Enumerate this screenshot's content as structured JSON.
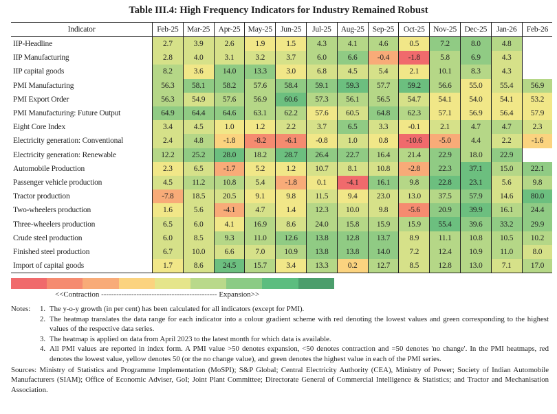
{
  "title": "Table III.4: High Frequency Indicators for Industry Remained Robust",
  "header": {
    "indicator": "Indicator",
    "months": [
      "Feb-25",
      "Mar-25",
      "Apr-25",
      "May-25",
      "Jun-25",
      "Jul-25",
      "Aug-25",
      "Sep-25",
      "Oct-25",
      "Nov-25",
      "Dec-25",
      "Jan-26",
      "Feb-26"
    ]
  },
  "palette": [
    "#f06a6c",
    "#f58b70",
    "#f8ab78",
    "#fbd37f",
    "#f1e788",
    "#d6e189",
    "#b5d787",
    "#90cb84",
    "#6cbf7f",
    "#57b27a"
  ],
  "rows": [
    {
      "name": "IIP-Headline",
      "values": [
        "2.7",
        "3.9",
        "2.6",
        "1.9",
        "1.5",
        "4.3",
        "4.1",
        "4.6",
        "0.5",
        "7.2",
        "8.0",
        "4.8",
        null
      ],
      "levels": [
        5,
        5,
        5,
        4,
        4,
        6,
        6,
        6,
        4,
        7,
        7,
        6,
        null
      ]
    },
    {
      "name": "IIP Manufacturing",
      "values": [
        "2.8",
        "4.0",
        "3.1",
        "3.2",
        "3.7",
        "6.0",
        "6.6",
        "-0.4",
        "-1.8",
        "5.8",
        "6.9",
        "4.3",
        null
      ],
      "levels": [
        5,
        5,
        5,
        5,
        5,
        6,
        7,
        2,
        0,
        6,
        7,
        5,
        null
      ]
    },
    {
      "name": "IIP capital goods",
      "values": [
        "8.2",
        "3.6",
        "14.0",
        "13.3",
        "3.0",
        "6.8",
        "4.5",
        "5.4",
        "2.1",
        "10.1",
        "8.3",
        "4.3",
        null
      ],
      "levels": [
        6,
        4,
        7,
        7,
        4,
        5,
        5,
        5,
        4,
        6,
        6,
        5,
        null
      ]
    },
    {
      "name": "PMI Manufacturing",
      "values": [
        "56.3",
        "58.1",
        "58.2",
        "57.6",
        "58.4",
        "59.1",
        "59.3",
        "57.7",
        "59.2",
        "56.6",
        "55.0",
        "55.4",
        "56.9"
      ],
      "levels": [
        6,
        7,
        7,
        6,
        7,
        7,
        8,
        6,
        8,
        6,
        4,
        5,
        6
      ]
    },
    {
      "name": "PMI Export Order",
      "values": [
        "56.3",
        "54.9",
        "57.6",
        "56.9",
        "60.6",
        "57.3",
        "56.1",
        "56.5",
        "54.7",
        "54.1",
        "54.0",
        "54.1",
        "53.2"
      ],
      "levels": [
        6,
        5,
        6,
        6,
        8,
        6,
        6,
        6,
        5,
        4,
        4,
        4,
        4
      ]
    },
    {
      "name": "PMI Manufacturing: Future Output",
      "values": [
        "64.9",
        "64.4",
        "64.6",
        "63.1",
        "62.2",
        "57.6",
        "60.5",
        "64.8",
        "62.3",
        "57.1",
        "56.9",
        "56.4",
        "57.9"
      ],
      "levels": [
        7,
        7,
        7,
        6,
        6,
        4,
        5,
        7,
        6,
        4,
        4,
        4,
        4
      ]
    },
    {
      "name": "Eight Core Index",
      "values": [
        "3.4",
        "4.5",
        "1.0",
        "1.2",
        "2.2",
        "3.7",
        "6.5",
        "3.3",
        "-0.1",
        "2.1",
        "4.7",
        "4.7",
        "2.3"
      ],
      "levels": [
        5,
        5,
        4,
        4,
        5,
        5,
        7,
        5,
        4,
        5,
        6,
        6,
        5
      ]
    },
    {
      "name": "Electricity generation: Conventional",
      "values": [
        "2.4",
        "4.8",
        "-1.8",
        "-8.2",
        "-6.1",
        "-0.8",
        "1.0",
        "0.8",
        "-10.6",
        "-5.0",
        "4.4",
        "2.2",
        "-1.6"
      ],
      "levels": [
        5,
        6,
        3,
        1,
        1,
        4,
        5,
        4,
        0,
        2,
        6,
        5,
        3
      ]
    },
    {
      "name": "Electricity generation: Renewable",
      "values": [
        "12.2",
        "25.2",
        "28.0",
        "18.2",
        "28.7",
        "26.4",
        "22.7",
        "16.4",
        "21.4",
        "22.9",
        "18.0",
        "22.9",
        null
      ],
      "levels": [
        6,
        7,
        8,
        6,
        8,
        7,
        7,
        6,
        6,
        7,
        6,
        7,
        null
      ]
    },
    {
      "name": "Automobile Production",
      "values": [
        "2.3",
        "6.5",
        "-1.7",
        "5.2",
        "1.2",
        "10.7",
        "8.1",
        "10.8",
        "-2.8",
        "22.3",
        "37.1",
        "15.0",
        "22.1"
      ],
      "levels": [
        4,
        5,
        2,
        4,
        4,
        5,
        5,
        5,
        2,
        7,
        8,
        6,
        7
      ]
    },
    {
      "name": "Passenger vehicle production",
      "values": [
        "4.5",
        "11.2",
        "10.8",
        "5.4",
        "-1.8",
        "0.1",
        "-4.1",
        "16.1",
        "9.8",
        "22.8",
        "23.1",
        "5.6",
        "9.8"
      ],
      "levels": [
        5,
        6,
        6,
        5,
        2,
        4,
        0,
        7,
        6,
        8,
        8,
        5,
        6
      ]
    },
    {
      "name": "Tractor production",
      "values": [
        "-7.8",
        "18.5",
        "20.5",
        "9.1",
        "9.8",
        "11.5",
        "9.4",
        "23.0",
        "13.0",
        "37.5",
        "57.9",
        "14.6",
        "80.0"
      ],
      "levels": [
        2,
        5,
        5,
        4,
        4,
        5,
        4,
        5,
        5,
        6,
        7,
        5,
        8
      ]
    },
    {
      "name": "Two-wheelers production",
      "values": [
        "1.6",
        "5.6",
        "-4.1",
        "4.7",
        "1.4",
        "12.3",
        "10.0",
        "9.8",
        "-5.6",
        "20.9",
        "39.9",
        "16.1",
        "24.4"
      ],
      "levels": [
        4,
        5,
        2,
        5,
        4,
        6,
        5,
        5,
        1,
        7,
        8,
        6,
        7
      ]
    },
    {
      "name": "Three-wheelers production",
      "values": [
        "6.5",
        "6.0",
        "4.1",
        "16.9",
        "8.6",
        "24.0",
        "15.8",
        "15.9",
        "15.9",
        "55.4",
        "39.6",
        "33.2",
        "29.9"
      ],
      "levels": [
        5,
        5,
        4,
        6,
        5,
        6,
        6,
        6,
        6,
        8,
        7,
        7,
        7
      ]
    },
    {
      "name": "Crude steel production",
      "values": [
        "6.0",
        "8.5",
        "9.3",
        "11.0",
        "12.6",
        "13.8",
        "12.8",
        "13.7",
        "8.9",
        "11.1",
        "10.8",
        "10.5",
        "10.2"
      ],
      "levels": [
        5,
        5,
        6,
        6,
        7,
        7,
        7,
        7,
        5,
        6,
        6,
        6,
        6
      ]
    },
    {
      "name": "Finished steel production",
      "values": [
        "6.7",
        "10.0",
        "6.6",
        "7.0",
        "10.9",
        "13.8",
        "13.8",
        "14.0",
        "7.2",
        "12.4",
        "10.9",
        "11.0",
        "8.0"
      ],
      "levels": [
        5,
        5,
        5,
        5,
        6,
        7,
        7,
        7,
        5,
        6,
        6,
        6,
        5
      ]
    },
    {
      "name": "Import of capital goods",
      "values": [
        "1.7",
        "8.6",
        "24.5",
        "15.7",
        "3.4",
        "13.3",
        "0.2",
        "12.7",
        "8.5",
        "12.8",
        "13.0",
        "7.1",
        "17.0"
      ],
      "levels": [
        4,
        5,
        8,
        6,
        4,
        6,
        3,
        6,
        5,
        6,
        6,
        5,
        6
      ]
    }
  ],
  "legend": {
    "colors": [
      "#f06a6c",
      "#f58b70",
      "#f8ab78",
      "#fbd37f",
      "#e5e58a",
      "#b9d98a",
      "#8bcb85",
      "#5cbd7f",
      "#4b9e6c"
    ],
    "caption": "<<Contraction ---------------------------------------------- Expansion>>"
  },
  "notes": {
    "label": "Notes:",
    "items": [
      {
        "num": "1.",
        "text": "The y-o-y growth (in per cent) has been calculated for all indicators (except for PMI)."
      },
      {
        "num": "2.",
        "text": "The heatmap translates the data range for each indicator into a colour gradient scheme with red denoting the lowest values and green corresponding to the highest values of the respective data series."
      },
      {
        "num": "3.",
        "text": "The heatmap is applied on data from April 2023 to the latest month for which data is available."
      },
      {
        "num": "4.",
        "text": "All PMI values are reported in index form. A PMI value >50 denotes expansion, <50 denotes contraction and =50 denotes 'no change'. In the PMI heatmaps, red denotes the lowest value, yellow denotes 50 (or the no change value), and green denotes the highest value in each of the PMI series."
      }
    ]
  },
  "sources": "Sources: Ministry of Statistics and Programme Implementation (MoSPI); S&P Global; Central Electricity Authority (CEA), Ministry of Power; Society of Indian Automobile Manufacturers (SIAM); Office of Economic Adviser, GoI; Joint Plant Committee; Directorate General of Commercial Intelligence & Statistics; and Tractor and Mechanisation Association."
}
